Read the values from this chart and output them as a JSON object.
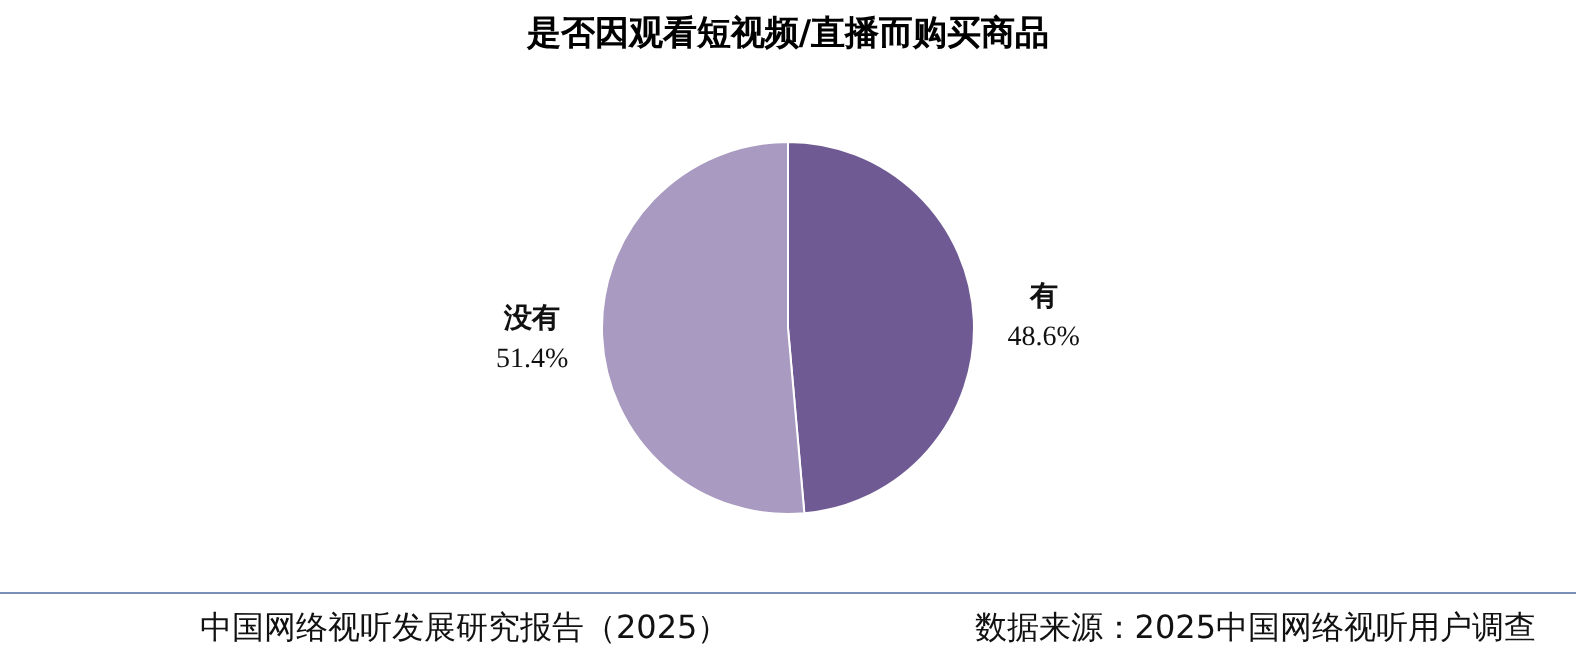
{
  "chart_data": {
    "type": "pie",
    "title": "是否因观看短视频/直播而购买商品",
    "categories": [
      "有",
      "没有"
    ],
    "values": [
      48.6,
      51.4
    ],
    "value_labels": [
      "48.6%",
      "51.4%"
    ],
    "colors": [
      "#6f5a93",
      "#a89ac0"
    ],
    "legend": false,
    "annotations": [
      "中国网络视听发展研究报告（2025）",
      "数据来源：2025中国网络视听用户调查"
    ]
  }
}
